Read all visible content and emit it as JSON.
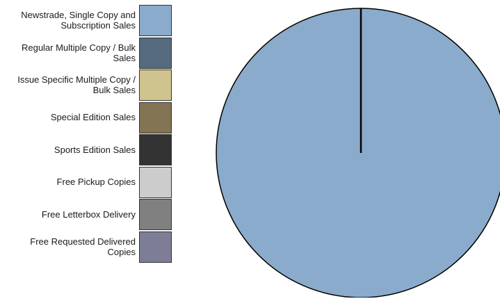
{
  "chart_data": {
    "type": "pie",
    "categories": [
      "Newstrade, Single Copy and Subscription Sales",
      "Regular Multiple Copy / Bulk Sales",
      "Issue Specific Multiple Copy / Bulk Sales",
      "Special Edition Sales",
      "Sports Edition Sales",
      "Free Pickup Copies",
      "Free Letterbox Delivery",
      "Free Requested Delivered Copies"
    ],
    "values": [
      100,
      0,
      0,
      0,
      0,
      0,
      0,
      0
    ],
    "colors": [
      "#8aabcb",
      "#566a80",
      "#d0c48e",
      "#837454",
      "#333333",
      "#cccccc",
      "#808080",
      "#7d7e96"
    ],
    "title": "",
    "legend_position": "left"
  }
}
